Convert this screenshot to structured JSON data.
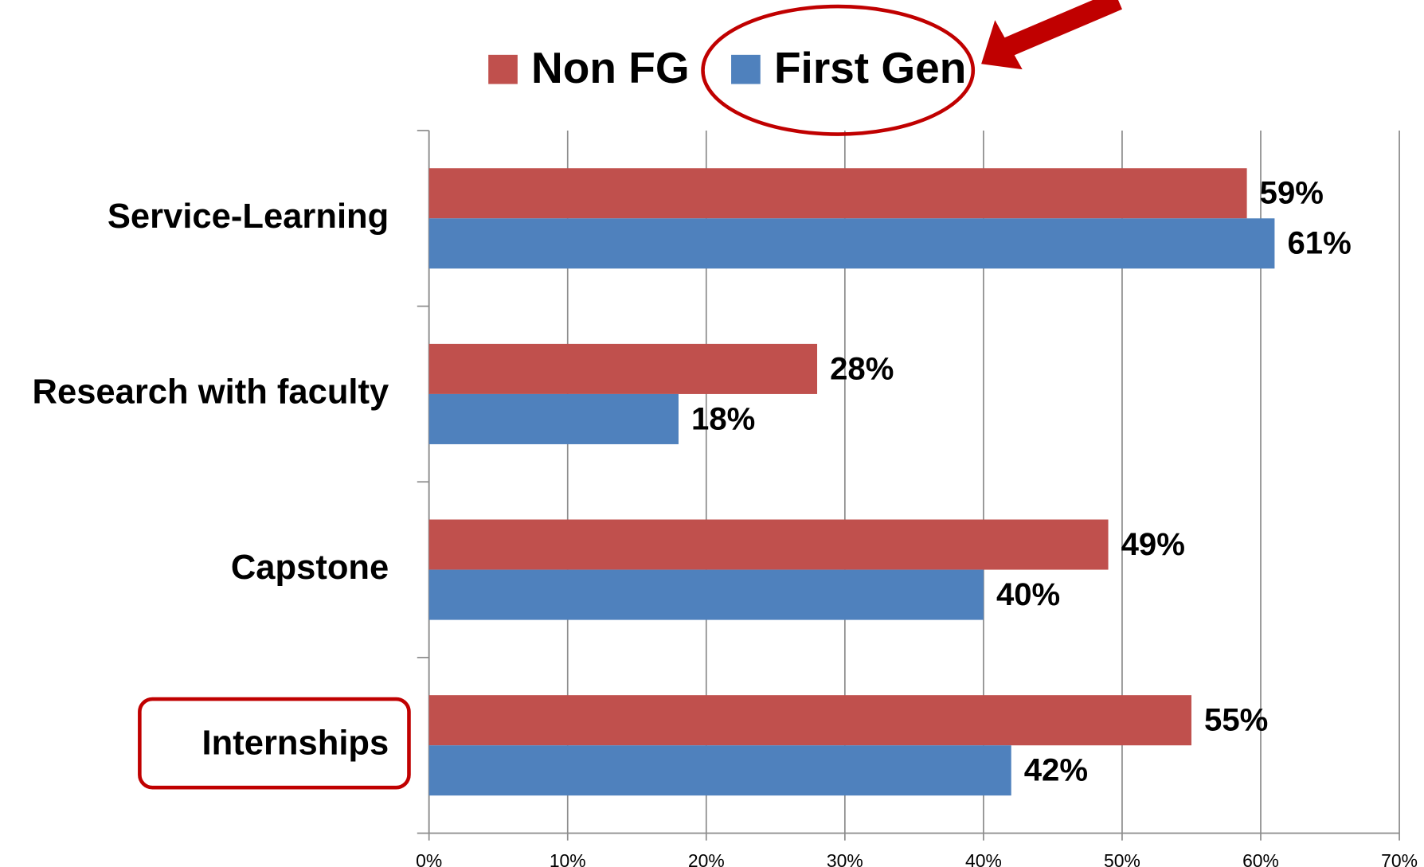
{
  "chart_data": {
    "type": "bar",
    "orientation": "horizontal",
    "categories": [
      "Service-Learning",
      "Research with faculty",
      "Capstone",
      "Internships"
    ],
    "series": [
      {
        "name": "Non FG",
        "color": "#c0504d",
        "values": [
          59,
          28,
          49,
          55
        ],
        "value_labels": [
          "59%",
          "28%",
          "49%",
          "55%"
        ]
      },
      {
        "name": "First Gen",
        "color": "#4f81bd",
        "values": [
          61,
          18,
          40,
          42
        ],
        "value_labels": [
          "61%",
          "18%",
          "40%",
          "42%"
        ]
      }
    ],
    "xlim": [
      0,
      70
    ],
    "xticks": [
      {
        "value": 0,
        "label": "0%"
      },
      {
        "value": 10,
        "label": "10%"
      },
      {
        "value": 20,
        "label": "20%"
      },
      {
        "value": 30,
        "label": "30%"
      },
      {
        "value": 40,
        "label": "40%"
      },
      {
        "value": 50,
        "label": "50%"
      },
      {
        "value": 60,
        "label": "60%"
      },
      {
        "value": 70,
        "label": "70%"
      }
    ],
    "grid": true,
    "legend": "top"
  }
}
